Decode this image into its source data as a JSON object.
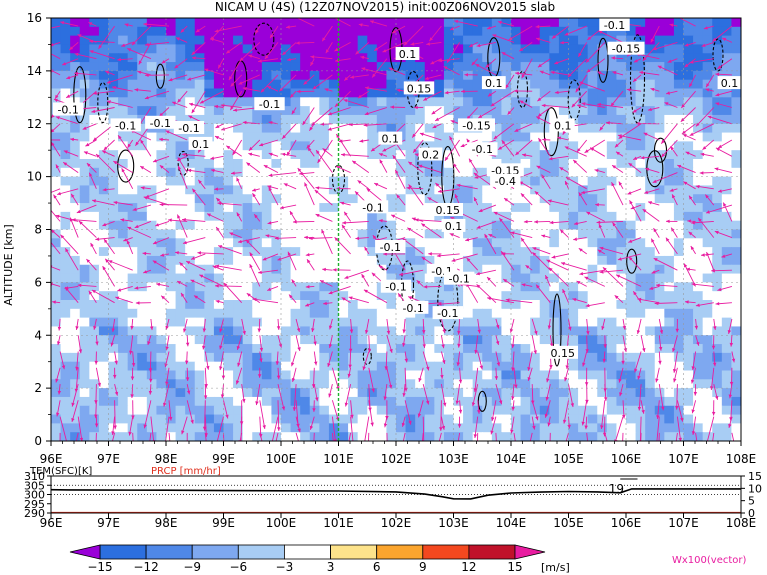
{
  "title": "NICAM U (4S) (12Z07NOV2015) init:00Z06NOV2015 slab",
  "chart_data": [
    {
      "type": "heatmap",
      "title": "NICAM U (4S) (12Z07NOV2015) init:00Z06NOV2015 slab",
      "xlabel": "",
      "ylabel": "ALTITUDE [km]",
      "x_ticks": [
        "96E",
        "97E",
        "98E",
        "99E",
        "100E",
        "101E",
        "102E",
        "103E",
        "104E",
        "105E",
        "106E",
        "107E",
        "108E"
      ],
      "y_ticks": [
        "0",
        "2",
        "4",
        "6",
        "8",
        "10",
        "12",
        "14",
        "16"
      ],
      "xlim": [
        96,
        108
      ],
      "ylim": [
        0,
        16
      ],
      "grid": true,
      "reference_line_lon": 101,
      "contour_labels": [
        {
          "text": "-0.1",
          "lon": 96.3,
          "alt": 12.5
        },
        {
          "text": "-0.1",
          "lon": 97.3,
          "alt": 11.9
        },
        {
          "text": "-0.1",
          "lon": 97.9,
          "alt": 12.0
        },
        {
          "text": "-0.1",
          "lon": 98.4,
          "alt": 11.8
        },
        {
          "text": "0.1",
          "lon": 98.6,
          "alt": 11.2
        },
        {
          "text": "-0.1",
          "lon": 99.8,
          "alt": 12.7
        },
        {
          "text": "0.1",
          "lon": 102.2,
          "alt": 14.6
        },
        {
          "text": "0.15",
          "lon": 102.4,
          "alt": 13.3
        },
        {
          "text": "0.1",
          "lon": 101.9,
          "alt": 11.4
        },
        {
          "text": "0.2",
          "lon": 102.6,
          "alt": 10.8
        },
        {
          "text": "0.1",
          "lon": 103.7,
          "alt": 13.5
        },
        {
          "text": "-0.15",
          "lon": 103.4,
          "alt": 11.9
        },
        {
          "text": "-0.1",
          "lon": 103.5,
          "alt": 11.0
        },
        {
          "text": "0.15",
          "lon": 102.9,
          "alt": 8.7
        },
        {
          "text": "0.1",
          "lon": 103.0,
          "alt": 8.1
        },
        {
          "text": "-0.15",
          "lon": 103.9,
          "alt": 10.2
        },
        {
          "text": "-0.4",
          "lon": 103.9,
          "alt": 9.8
        },
        {
          "text": "0.1",
          "lon": 104.9,
          "alt": 11.9
        },
        {
          "text": "-0.1",
          "lon": 105.8,
          "alt": 15.7
        },
        {
          "text": "-0.15",
          "lon": 106.0,
          "alt": 14.8
        },
        {
          "text": "0.1",
          "lon": 107.8,
          "alt": 13.5
        },
        {
          "text": "-0.1",
          "lon": 101.9,
          "alt": 7.3
        },
        {
          "text": "-0.1",
          "lon": 102.0,
          "alt": 5.8
        },
        {
          "text": "-0.1",
          "lon": 102.3,
          "alt": 5.0
        },
        {
          "text": "-0.1",
          "lon": 101.6,
          "alt": 8.8
        },
        {
          "text": "-0.1",
          "lon": 102.8,
          "alt": 6.4
        },
        {
          "text": "-0.1",
          "lon": 103.1,
          "alt": 6.1
        },
        {
          "text": "0.15",
          "lon": 104.9,
          "alt": 3.3
        },
        {
          "text": "-0.1",
          "lon": 102.9,
          "alt": 4.8
        }
      ],
      "colorbar": {
        "ticks": [
          "-15",
          "-12",
          "-9",
          "-6",
          "-3",
          "3",
          "6",
          "9",
          "12",
          "15"
        ],
        "unit": "[m/s]",
        "colors": [
          "#9a00d8",
          "#2c6fdf",
          "#4f88e8",
          "#7ea8f0",
          "#a8cdf4",
          "#ffffff",
          "#fde38b",
          "#fba52e",
          "#f3481f",
          "#c0122a",
          "#e81ca0"
        ]
      },
      "vector_label": "Wx100(vector)",
      "vector_color": "#e81ca0"
    },
    {
      "type": "line",
      "left_label": "TEM(SFC)[K]",
      "right_label": "PRCP [mm/hr]",
      "left_ticks": [
        "310",
        "305",
        "300",
        "295",
        "290"
      ],
      "right_ticks": [
        "15",
        "10",
        "5",
        "0"
      ],
      "ylim_left": [
        290,
        310
      ],
      "ylim_right": [
        0,
        15
      ],
      "x_ticks": [
        "96E",
        "97E",
        "98E",
        "99E",
        "100E",
        "101E",
        "102E",
        "103E",
        "104E",
        "105E",
        "106E",
        "107E",
        "108E"
      ],
      "marker_label": "19",
      "series": [
        {
          "lon": [
            96,
            96.3,
            97,
            98,
            99,
            100,
            101,
            102,
            102.5,
            102.8,
            103,
            103.3,
            103.6,
            104,
            104.5,
            105,
            105.5,
            105.9,
            106.1,
            107,
            108
          ],
          "values": [
            302.6,
            302.5,
            302.4,
            302.3,
            302.1,
            302.0,
            301.9,
            301.4,
            300.2,
            298.8,
            297.7,
            297.6,
            299.6,
            300.8,
            301.3,
            301.6,
            301.4,
            300.9,
            303.0,
            303.0,
            303.0
          ]
        }
      ],
      "dotted_levels": [
        300,
        305
      ]
    }
  ]
}
